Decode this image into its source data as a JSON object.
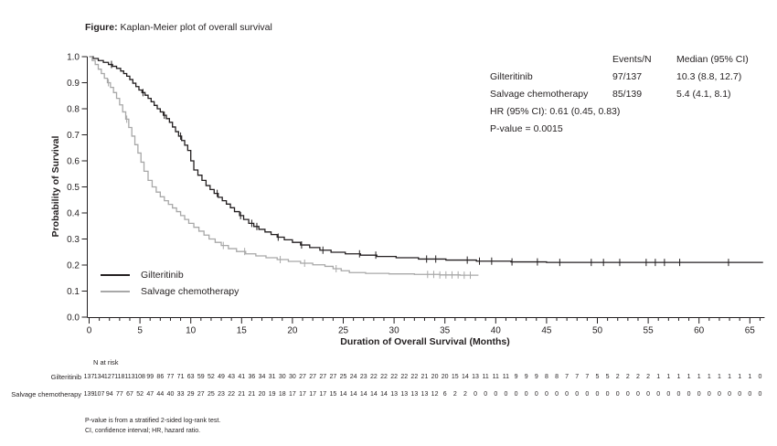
{
  "title": {
    "prefix": "Figure:",
    "text": " Kaplan-Meier plot of overall survival"
  },
  "colors": {
    "gilteritinib": "#231f20",
    "salvage": "#a8a8a8",
    "axis": "#231f20"
  },
  "stats": {
    "col_events": "Events/N",
    "col_median": "Median (95% CI)",
    "rows": [
      {
        "label": "Gilteritinib",
        "events": "97/137",
        "median": "10.3 (8.8, 12.7)"
      },
      {
        "label": "Salvage chemotherapy",
        "events": "85/139",
        "median": "5.4 (4.1, 8.1)"
      }
    ],
    "hr_line": "HR (95% CI): 0.61 (0.45, 0.83)",
    "p_line": "P-value = 0.0015"
  },
  "legend": {
    "items": [
      {
        "label": "Gilteritinib",
        "color_key": "gilteritinib"
      },
      {
        "label": "Salvage chemotherapy",
        "color_key": "salvage"
      }
    ]
  },
  "axes": {
    "ylabel": "Probability of Survival",
    "xlabel": "Duration of Overall Survival (Months)"
  },
  "at_risk": {
    "header": "N at risk",
    "rows": [
      {
        "label": "Gilteritinib",
        "values": [
          137,
          134,
          127,
          118,
          113,
          108,
          99,
          86,
          77,
          71,
          63,
          59,
          52,
          49,
          43,
          41,
          36,
          34,
          31,
          30,
          30,
          27,
          27,
          27,
          27,
          25,
          24,
          23,
          22,
          22,
          22,
          22,
          22,
          21,
          20,
          20,
          15,
          14,
          13,
          11,
          11,
          11,
          9,
          9,
          9,
          8,
          8,
          7,
          7,
          7,
          5,
          5,
          2,
          2,
          2,
          2,
          1,
          1,
          1,
          1,
          1,
          1,
          1,
          1,
          1,
          1,
          0
        ]
      },
      {
        "label": "Salvage chemotherapy",
        "values": [
          139,
          107,
          94,
          77,
          67,
          52,
          47,
          44,
          40,
          33,
          29,
          27,
          25,
          23,
          22,
          21,
          21,
          20,
          19,
          18,
          17,
          17,
          17,
          17,
          15,
          14,
          14,
          14,
          14,
          14,
          13,
          13,
          13,
          13,
          12,
          6,
          2,
          2,
          0,
          0,
          0,
          0,
          0,
          0,
          0,
          0,
          0,
          0,
          0,
          0,
          0,
          0,
          0,
          0,
          0,
          0,
          0,
          0,
          0,
          0,
          0,
          0,
          0,
          0,
          0,
          0,
          0
        ]
      }
    ]
  },
  "footnotes": [
    "P-value is from a stratified 2-sided log-rank test.",
    "CI, confidence interval; HR, hazard ratio."
  ],
  "chart_data": {
    "type": "line",
    "subtype": "kaplan-meier-step",
    "title": "Kaplan-Meier plot of overall survival",
    "xlabel": "Duration of Overall Survival (Months)",
    "ylabel": "Probability of Survival",
    "xlim": [
      0,
      66.5
    ],
    "ylim": [
      0.0,
      1.0
    ],
    "x_major_ticks": [
      0,
      5,
      10,
      15,
      20,
      25,
      30,
      35,
      40,
      45,
      50,
      55,
      60,
      65
    ],
    "x_minor_step": 1,
    "x_minor_max": 66,
    "y_ticks": [
      0.0,
      0.1,
      0.2,
      0.3,
      0.4,
      0.5,
      0.6,
      0.7,
      0.8,
      0.9,
      1.0
    ],
    "grid": false,
    "legend_position": "inside-lower-left",
    "series": [
      {
        "name": "Gilteritinib",
        "color_key": "gilteritinib",
        "median_months": 10.3,
        "events_n": "97/137",
        "steps": [
          [
            0,
            1.0
          ],
          [
            0.4,
            0.993
          ],
          [
            0.9,
            0.985
          ],
          [
            1.4,
            0.978
          ],
          [
            1.9,
            0.97
          ],
          [
            2.3,
            0.963
          ],
          [
            2.7,
            0.955
          ],
          [
            3.1,
            0.945
          ],
          [
            3.4,
            0.935
          ],
          [
            3.7,
            0.925
          ],
          [
            4.0,
            0.912
          ],
          [
            4.3,
            0.898
          ],
          [
            4.6,
            0.885
          ],
          [
            4.9,
            0.872
          ],
          [
            5.2,
            0.862
          ],
          [
            5.5,
            0.852
          ],
          [
            5.8,
            0.84
          ],
          [
            6.1,
            0.827
          ],
          [
            6.4,
            0.813
          ],
          [
            6.7,
            0.8
          ],
          [
            7.0,
            0.788
          ],
          [
            7.3,
            0.775
          ],
          [
            7.6,
            0.762
          ],
          [
            7.9,
            0.748
          ],
          [
            8.2,
            0.73
          ],
          [
            8.5,
            0.712
          ],
          [
            8.8,
            0.695
          ],
          [
            9.1,
            0.678
          ],
          [
            9.4,
            0.66
          ],
          [
            9.7,
            0.64
          ],
          [
            10.0,
            0.6
          ],
          [
            10.3,
            0.565
          ],
          [
            10.7,
            0.545
          ],
          [
            11.1,
            0.525
          ],
          [
            11.5,
            0.505
          ],
          [
            11.9,
            0.49
          ],
          [
            12.3,
            0.475
          ],
          [
            12.7,
            0.46
          ],
          [
            13.1,
            0.447
          ],
          [
            13.5,
            0.434
          ],
          [
            13.9,
            0.42
          ],
          [
            14.3,
            0.405
          ],
          [
            14.8,
            0.39
          ],
          [
            15.2,
            0.375
          ],
          [
            15.7,
            0.36
          ],
          [
            16.2,
            0.348
          ],
          [
            16.7,
            0.337
          ],
          [
            17.3,
            0.327
          ],
          [
            17.9,
            0.317
          ],
          [
            18.5,
            0.307
          ],
          [
            19.2,
            0.297
          ],
          [
            20.0,
            0.287
          ],
          [
            20.8,
            0.277
          ],
          [
            21.7,
            0.267
          ],
          [
            22.7,
            0.257
          ],
          [
            23.8,
            0.249
          ],
          [
            25.2,
            0.243
          ],
          [
            26.7,
            0.238
          ],
          [
            28.3,
            0.233
          ],
          [
            30.2,
            0.228
          ],
          [
            32.4,
            0.223
          ],
          [
            35.1,
            0.219
          ],
          [
            38.1,
            0.215
          ],
          [
            41.5,
            0.212
          ],
          [
            45.0,
            0.21
          ],
          [
            66.3,
            0.21
          ]
        ],
        "censor_months": [
          2.2,
          5.3,
          7.4,
          9.0,
          12.6,
          14.9,
          16.0,
          16.5,
          18.6,
          20.9,
          23.0,
          26.6,
          28.2,
          33.2,
          34.1,
          37.2,
          38.4,
          39.6,
          41.6,
          44.1,
          46.3,
          49.4,
          50.6,
          52.2,
          54.8,
          55.7,
          56.6,
          58.1,
          62.9
        ]
      },
      {
        "name": "Salvage chemotherapy",
        "color_key": "salvage",
        "median_months": 5.4,
        "events_n": "85/139",
        "steps": [
          [
            0,
            1.0
          ],
          [
            0.3,
            0.985
          ],
          [
            0.6,
            0.97
          ],
          [
            0.9,
            0.952
          ],
          [
            1.2,
            0.935
          ],
          [
            1.5,
            0.917
          ],
          [
            1.8,
            0.9
          ],
          [
            2.1,
            0.882
          ],
          [
            2.4,
            0.862
          ],
          [
            2.7,
            0.84
          ],
          [
            3.0,
            0.815
          ],
          [
            3.3,
            0.788
          ],
          [
            3.6,
            0.76
          ],
          [
            3.9,
            0.728
          ],
          [
            4.2,
            0.695
          ],
          [
            4.5,
            0.662
          ],
          [
            4.8,
            0.63
          ],
          [
            5.1,
            0.595
          ],
          [
            5.4,
            0.56
          ],
          [
            5.8,
            0.525
          ],
          [
            6.2,
            0.5
          ],
          [
            6.6,
            0.48
          ],
          [
            7.0,
            0.462
          ],
          [
            7.4,
            0.447
          ],
          [
            7.8,
            0.433
          ],
          [
            8.2,
            0.419
          ],
          [
            8.6,
            0.405
          ],
          [
            9.0,
            0.39
          ],
          [
            9.4,
            0.375
          ],
          [
            9.8,
            0.36
          ],
          [
            10.3,
            0.345
          ],
          [
            10.8,
            0.33
          ],
          [
            11.3,
            0.315
          ],
          [
            11.8,
            0.3
          ],
          [
            12.4,
            0.287
          ],
          [
            13.0,
            0.275
          ],
          [
            13.7,
            0.263
          ],
          [
            14.5,
            0.252
          ],
          [
            15.4,
            0.243
          ],
          [
            16.4,
            0.235
          ],
          [
            17.4,
            0.228
          ],
          [
            18.5,
            0.221
          ],
          [
            19.6,
            0.214
          ],
          [
            20.8,
            0.207
          ],
          [
            22.0,
            0.201
          ],
          [
            23.2,
            0.195
          ],
          [
            24.0,
            0.186
          ],
          [
            24.8,
            0.178
          ],
          [
            25.6,
            0.171
          ],
          [
            27.2,
            0.168
          ],
          [
            29.5,
            0.166
          ],
          [
            32.0,
            0.164
          ],
          [
            34.5,
            0.162
          ],
          [
            36.5,
            0.161
          ],
          [
            38.3,
            0.161
          ]
        ],
        "censor_months": [
          1.9,
          3.7,
          13.2,
          15.3,
          18.8,
          21.2,
          24.3,
          33.3,
          33.9,
          34.5,
          35.1,
          35.7,
          36.3,
          36.9,
          37.5
        ]
      }
    ],
    "hr_text": "HR (95% CI): 0.61 (0.45, 0.83)",
    "p_value_text": "P-value = 0.0015"
  }
}
